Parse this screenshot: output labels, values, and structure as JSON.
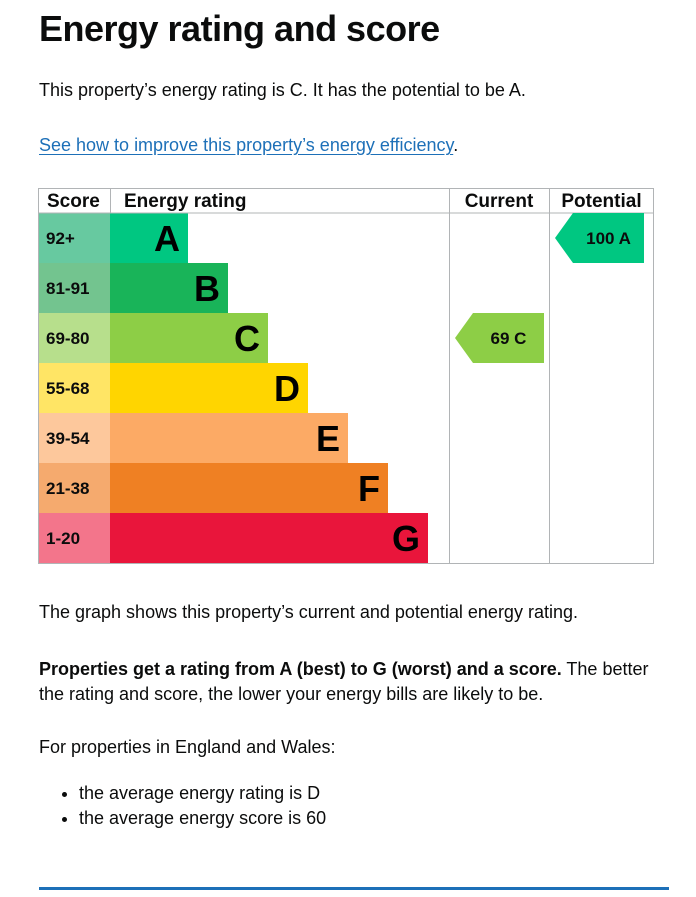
{
  "page": {
    "title": "Energy rating and score",
    "intro": "This property’s energy rating is C. It has the potential to be A.",
    "improve_link": "See how to improve this property’s energy efficiency",
    "improve_suffix": "."
  },
  "chart_data": {
    "type": "table",
    "headers": {
      "score": "Score",
      "rating": "Energy rating",
      "current": "Current",
      "potential": "Potential"
    },
    "bands": [
      {
        "letter": "A",
        "range": "92+",
        "band_color": "#00c781",
        "score_color": "#67c9a0"
      },
      {
        "letter": "B",
        "range": "81-91",
        "band_color": "#19b459",
        "score_color": "#73c48f"
      },
      {
        "letter": "C",
        "range": "69-80",
        "band_color": "#8dce46",
        "score_color": "#b7df8c"
      },
      {
        "letter": "D",
        "range": "55-68",
        "band_color": "#ffd500",
        "score_color": "#ffe565"
      },
      {
        "letter": "E",
        "range": "39-54",
        "band_color": "#fcaa65",
        "score_color": "#fdc89c"
      },
      {
        "letter": "F",
        "range": "21-38",
        "band_color": "#ef8023",
        "score_color": "#f5aa6e"
      },
      {
        "letter": "G",
        "range": "1-20",
        "band_color": "#e9153b",
        "score_color": "#f3758b"
      }
    ],
    "current": {
      "score": 69,
      "rating": "C",
      "label": "69 C",
      "color": "#8dce46"
    },
    "potential": {
      "score": 100,
      "rating": "A",
      "label": "100 A",
      "color": "#00c781"
    }
  },
  "body": {
    "graph_note": "The graph shows this property’s current and potential energy rating.",
    "ratings_bold": "Properties get a rating from A (best) to G (worst) and a score.",
    "ratings_rest": " The better the rating and score, the lower your energy bills are likely to be.",
    "average_intro": "For properties in England and Wales:",
    "averages": [
      "the average energy rating is D",
      "the average energy score is 60"
    ]
  }
}
